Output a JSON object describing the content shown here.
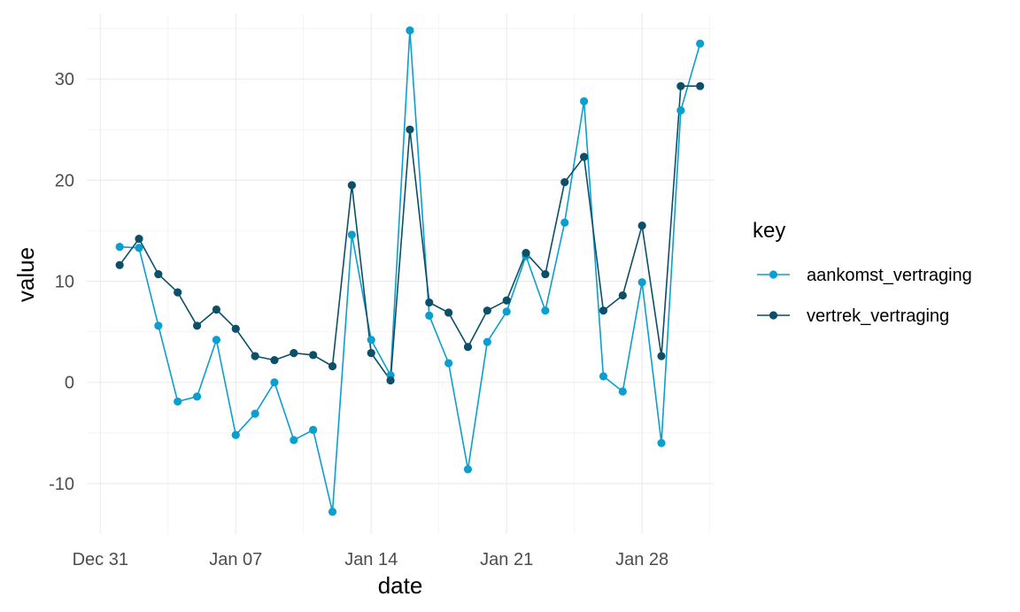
{
  "chart_data": {
    "type": "line",
    "title": "",
    "xlabel": "date",
    "ylabel": "value",
    "x_tick_labels": [
      "Dec 31",
      "Jan 07",
      "Jan 14",
      "Jan 21",
      "Jan 28"
    ],
    "y_ticks": [
      -10,
      0,
      10,
      20,
      30
    ],
    "xlim": [
      -0.7,
      31.7
    ],
    "ylim": [
      -15,
      36.5
    ],
    "grid": true,
    "legend_title": "key",
    "legend_position": "right",
    "x": [
      1,
      2,
      3,
      4,
      5,
      6,
      7,
      8,
      9,
      10,
      11,
      12,
      13,
      14,
      15,
      16,
      17,
      18,
      19,
      20,
      21,
      22,
      23,
      24,
      25,
      26,
      27,
      28,
      29,
      30,
      31
    ],
    "series": [
      {
        "name": "aankomst_vertraging",
        "color": "#0a9fcf",
        "values": [
          13.4,
          13.3,
          5.6,
          -1.9,
          -1.4,
          4.2,
          -5.2,
          -3.1,
          0.0,
          -5.7,
          -4.7,
          -12.8,
          14.6,
          4.2,
          0.7,
          34.8,
          6.6,
          1.9,
          -8.6,
          4.0,
          7.0,
          12.5,
          7.1,
          15.8,
          27.8,
          0.6,
          -0.9,
          9.9,
          -6.0,
          26.9,
          33.5
        ]
      },
      {
        "name": "vertrek_vertraging",
        "color": "#0c4f69",
        "values": [
          11.6,
          14.2,
          10.7,
          8.9,
          5.6,
          7.2,
          5.3,
          2.6,
          2.2,
          2.9,
          2.7,
          1.6,
          19.5,
          2.9,
          0.2,
          25.0,
          7.9,
          6.9,
          3.5,
          7.1,
          8.1,
          12.8,
          10.7,
          19.8,
          22.3,
          7.1,
          8.6,
          15.5,
          2.6,
          29.3,
          29.3
        ]
      }
    ]
  }
}
